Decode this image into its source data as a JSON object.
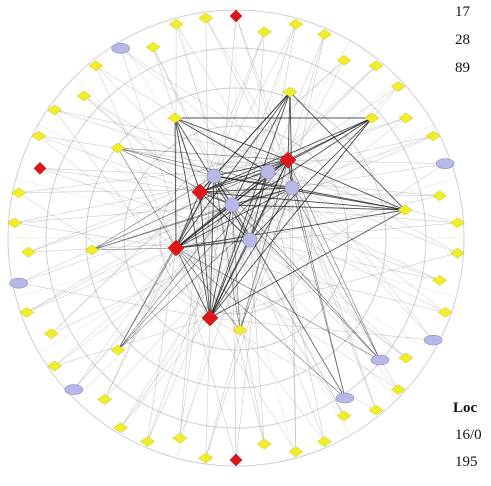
{
  "diagram": {
    "colors": {
      "background": "#ffffff",
      "ring": "#cfcfcf",
      "edge_light": "#9a9a9a",
      "edge_dark": "#1a1a1a",
      "node_yellow": "#f0ee2a",
      "node_yellow_stroke": "#c8c600",
      "node_red": "#e01515",
      "node_lavender": "#b8b8e8",
      "node_lavender_stroke": "#8a8ac0"
    },
    "legend_marks": [
      "17",
      "28",
      "89"
    ],
    "side_heading": "Loc",
    "side_lines": [
      "16/0",
      "195"
    ]
  }
}
